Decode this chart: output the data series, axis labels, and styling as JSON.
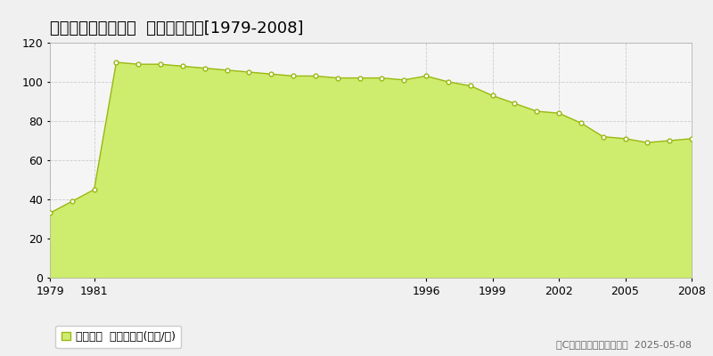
{
  "title": "大阪市平野区平野南  公示地価推移[1979-2008]",
  "years": [
    1979,
    1980,
    1981,
    1982,
    1983,
    1984,
    1985,
    1986,
    1987,
    1988,
    1989,
    1990,
    1991,
    1992,
    1993,
    1994,
    1995,
    1996,
    1997,
    1998,
    1999,
    2000,
    2001,
    2002,
    2003,
    2004,
    2005,
    2006,
    2007,
    2008
  ],
  "values": [
    33,
    39,
    45,
    110,
    109,
    109,
    108,
    107,
    106,
    105,
    104,
    103,
    103,
    102,
    102,
    102,
    101,
    103,
    100,
    98,
    93,
    89,
    85,
    84,
    79,
    72,
    71,
    69,
    70,
    71
  ],
  "fill_color": "#ceed6e",
  "line_color": "#9ab812",
  "marker_facecolor": "#ffffff",
  "marker_edgecolor": "#9ab812",
  "background_color": "#f0f0f0",
  "plot_bg_color": "#f5f5f5",
  "grid_color": "#cccccc",
  "ylim": [
    0,
    120
  ],
  "yticks": [
    0,
    20,
    40,
    60,
    80,
    100,
    120
  ],
  "xticks": [
    1979,
    1981,
    1996,
    1999,
    2002,
    2005,
    2008
  ],
  "legend_label": "公示地価  平均坊単価(万円/坊)",
  "copyright_text": "（C）土地価格ドットコム  2025-05-08",
  "title_fontsize": 13,
  "axis_fontsize": 9,
  "legend_fontsize": 9,
  "copyright_fontsize": 8
}
